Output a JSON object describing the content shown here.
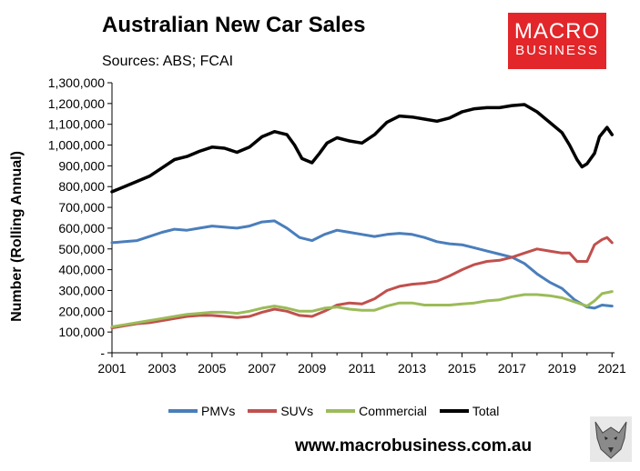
{
  "header": {
    "title": "Australian New Car Sales",
    "subtitle": "Sources: ABS; FCAI"
  },
  "logo": {
    "line1": "MACRO",
    "line2": "BUSINESS",
    "color": "#e2262a"
  },
  "footer": {
    "url": "www.macrobusiness.com.au"
  },
  "chart_data": {
    "type": "line",
    "title": "Australian New Car Sales",
    "ylabel": "Number (Rolling Annual)",
    "xlabel": "",
    "xlim": [
      2001,
      2021.1
    ],
    "ylim": [
      0,
      1300000
    ],
    "yticks": [
      0,
      100000,
      200000,
      300000,
      400000,
      500000,
      600000,
      700000,
      800000,
      900000,
      1000000,
      1100000,
      1200000,
      1300000
    ],
    "ytick_labels": [
      "-",
      "100,000",
      "200,000",
      "300,000",
      "400,000",
      "500,000",
      "600,000",
      "700,000",
      "800,000",
      "900,000",
      "1,000,000",
      "1,100,000",
      "1,200,000",
      "1,300,000"
    ],
    "xticks": [
      2001,
      2003,
      2005,
      2007,
      2009,
      2011,
      2013,
      2015,
      2017,
      2019,
      2021
    ],
    "xtick_labels": [
      "2001",
      "2003",
      "2005",
      "2007",
      "2009",
      "2011",
      "2013",
      "2015",
      "2017",
      "2019",
      "2021"
    ],
    "grid": false,
    "legend": "bottom",
    "series": [
      {
        "name": "PMVs",
        "color": "#4a7ebb",
        "x": [
          2001,
          2001.5,
          2002,
          2002.5,
          2003,
          2003.5,
          2004,
          2004.5,
          2005,
          2005.5,
          2006,
          2006.5,
          2007,
          2007.5,
          2008,
          2008.5,
          2009,
          2009.5,
          2010,
          2010.5,
          2011,
          2011.5,
          2012,
          2012.5,
          2013,
          2013.5,
          2014,
          2014.5,
          2015,
          2015.5,
          2016,
          2016.5,
          2017,
          2017.5,
          2018,
          2018.5,
          2019,
          2019.5,
          2020,
          2020.3,
          2020.6,
          2021
        ],
        "y": [
          530000,
          535000,
          540000,
          560000,
          580000,
          595000,
          590000,
          600000,
          610000,
          605000,
          600000,
          610000,
          630000,
          635000,
          600000,
          555000,
          540000,
          570000,
          590000,
          580000,
          570000,
          560000,
          570000,
          575000,
          570000,
          555000,
          535000,
          525000,
          520000,
          505000,
          490000,
          475000,
          460000,
          430000,
          380000,
          340000,
          310000,
          255000,
          220000,
          215000,
          230000,
          225000
        ]
      },
      {
        "name": "SUVs",
        "color": "#c0504d",
        "x": [
          2001,
          2001.5,
          2002,
          2002.5,
          2003,
          2003.5,
          2004,
          2004.5,
          2005,
          2005.5,
          2006,
          2006.5,
          2007,
          2007.5,
          2008,
          2008.5,
          2009,
          2009.5,
          2010,
          2010.5,
          2011,
          2011.5,
          2012,
          2012.5,
          2013,
          2013.5,
          2014,
          2014.5,
          2015,
          2015.5,
          2016,
          2016.5,
          2017,
          2017.5,
          2018,
          2018.5,
          2019,
          2019.3,
          2019.6,
          2020,
          2020.3,
          2020.6,
          2020.8,
          2021
        ],
        "y": [
          120000,
          130000,
          140000,
          145000,
          155000,
          165000,
          175000,
          180000,
          180000,
          175000,
          170000,
          175000,
          195000,
          210000,
          200000,
          180000,
          175000,
          200000,
          230000,
          240000,
          235000,
          260000,
          300000,
          320000,
          330000,
          335000,
          345000,
          370000,
          400000,
          425000,
          440000,
          445000,
          460000,
          480000,
          500000,
          490000,
          480000,
          480000,
          440000,
          440000,
          520000,
          545000,
          555000,
          530000
        ]
      },
      {
        "name": "Commercial",
        "color": "#9bbb59",
        "x": [
          2001,
          2001.5,
          2002,
          2002.5,
          2003,
          2003.5,
          2004,
          2004.5,
          2005,
          2005.5,
          2006,
          2006.5,
          2007,
          2007.5,
          2008,
          2008.5,
          2009,
          2009.5,
          2010,
          2010.5,
          2011,
          2011.5,
          2012,
          2012.5,
          2013,
          2013.5,
          2014,
          2014.5,
          2015,
          2015.5,
          2016,
          2016.5,
          2017,
          2017.5,
          2018,
          2018.5,
          2019,
          2019.5,
          2020,
          2020.3,
          2020.6,
          2021
        ],
        "y": [
          125000,
          135000,
          145000,
          155000,
          165000,
          175000,
          185000,
          190000,
          195000,
          195000,
          190000,
          200000,
          215000,
          225000,
          215000,
          200000,
          200000,
          215000,
          220000,
          210000,
          205000,
          205000,
          225000,
          240000,
          240000,
          230000,
          230000,
          230000,
          235000,
          240000,
          250000,
          255000,
          270000,
          280000,
          280000,
          275000,
          265000,
          245000,
          225000,
          250000,
          285000,
          295000
        ]
      },
      {
        "name": "Total",
        "color": "#000000",
        "x": [
          2001,
          2001.5,
          2002,
          2002.5,
          2003,
          2003.5,
          2004,
          2004.5,
          2005,
          2005.5,
          2006,
          2006.5,
          2007,
          2007.5,
          2008,
          2008.3,
          2008.6,
          2009,
          2009.3,
          2009.6,
          2010,
          2010.5,
          2011,
          2011.5,
          2012,
          2012.5,
          2013,
          2013.5,
          2014,
          2014.5,
          2015,
          2015.5,
          2016,
          2016.5,
          2017,
          2017.5,
          2018,
          2018.5,
          2019,
          2019.3,
          2019.6,
          2019.8,
          2020,
          2020.3,
          2020.5,
          2020.8,
          2021
        ],
        "y": [
          775000,
          800000,
          825000,
          850000,
          890000,
          930000,
          945000,
          970000,
          990000,
          985000,
          965000,
          990000,
          1040000,
          1065000,
          1050000,
          1000000,
          935000,
          915000,
          960000,
          1010000,
          1035000,
          1020000,
          1010000,
          1050000,
          1110000,
          1140000,
          1135000,
          1125000,
          1115000,
          1130000,
          1160000,
          1175000,
          1180000,
          1180000,
          1190000,
          1195000,
          1160000,
          1110000,
          1060000,
          1000000,
          930000,
          895000,
          910000,
          960000,
          1040000,
          1085000,
          1050000
        ]
      }
    ]
  }
}
